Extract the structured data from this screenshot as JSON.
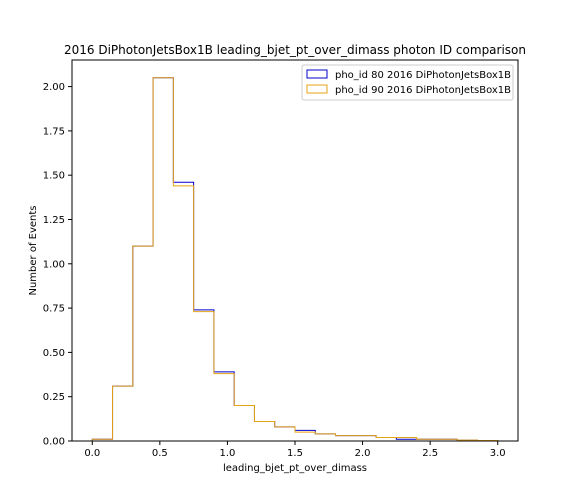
{
  "chart_data": {
    "type": "step-histogram",
    "title": "2016 DiPhotonJetsBox1B leading_bjet_pt_over_dimass photon ID comparison",
    "xlabel": "leading_bjet_pt_over_dimass",
    "ylabel": "Number of Events",
    "xlim": [
      -0.15,
      3.15
    ],
    "ylim": [
      0,
      2.15
    ],
    "x_ticks": [
      0.0,
      0.5,
      1.0,
      1.5,
      2.0,
      2.5,
      3.0
    ],
    "x_tick_labels": [
      "0.0",
      "0.5",
      "1.0",
      "1.5",
      "2.0",
      "2.5",
      "3.0"
    ],
    "y_ticks": [
      0.0,
      0.25,
      0.5,
      0.75,
      1.0,
      1.25,
      1.5,
      1.75,
      2.0
    ],
    "y_tick_labels": [
      "0.00",
      "0.25",
      "0.50",
      "0.75",
      "1.00",
      "1.25",
      "1.50",
      "1.75",
      "2.00"
    ],
    "bin_edges": [
      0.0,
      0.15,
      0.3,
      0.45,
      0.6,
      0.75,
      0.9,
      1.05,
      1.2,
      1.35,
      1.5,
      1.65,
      1.8,
      1.95,
      2.1,
      2.25,
      2.4,
      2.55,
      2.7,
      2.85,
      3.0
    ],
    "legend_position": "top-right",
    "grid": false,
    "series": [
      {
        "name": "pho_id 80 2016 DiPhotonJetsBox1B",
        "color": "#0000cc",
        "values": [
          0.01,
          0.31,
          1.1,
          2.05,
          1.46,
          0.74,
          0.39,
          0.2,
          0.11,
          0.08,
          0.06,
          0.04,
          0.03,
          0.03,
          0.02,
          0.01,
          0.01,
          0.01,
          0.004,
          0.003
        ]
      },
      {
        "name": "pho_id 90 2016 DiPhotonJetsBox1B",
        "color": "#e8a317",
        "values": [
          0.01,
          0.31,
          1.1,
          2.05,
          1.44,
          0.73,
          0.38,
          0.2,
          0.11,
          0.08,
          0.05,
          0.04,
          0.03,
          0.03,
          0.02,
          0.02,
          0.01,
          0.01,
          0.005,
          0.003
        ]
      }
    ]
  }
}
